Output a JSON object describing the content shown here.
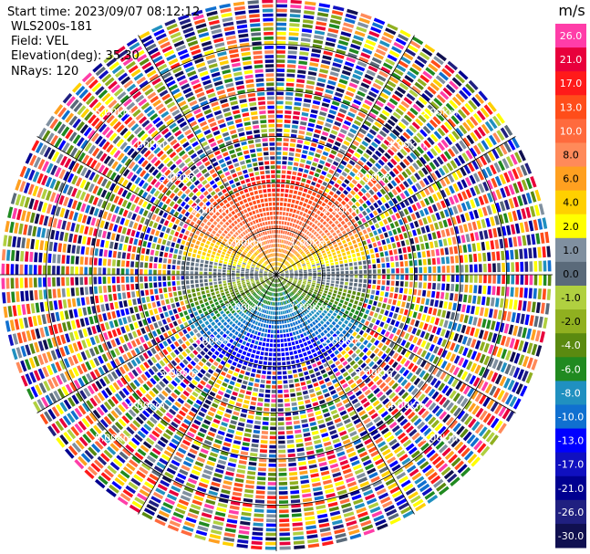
{
  "header": {
    "start_time": "Start time: 2023/09/07 08:12:12",
    "instrument": "WLS200s-181",
    "field": "Field: VEL",
    "elevation": "Elevation(deg): 35.30",
    "nrays": "NRays: 120"
  },
  "chart_data": {
    "type": "heatmap",
    "title": "",
    "projection": "polar-ppi",
    "range_unit": "km",
    "max_range_km": 6.0,
    "range_rings_km": [
      1.0,
      2.0,
      3.0,
      4.0,
      5.0
    ],
    "ring_labels": [
      "1.00km",
      "2.00km",
      "3.00km",
      "4.00km",
      "5.00km"
    ],
    "n_rays": 120,
    "clean_region_max_km": 2.3,
    "velocity_pattern": {
      "north_sector": "positive velocities (2 to 21 m/s, red/orange/yellow)",
      "south_sector": "negative velocities (-4 to -17 m/s, green/blue)",
      "far_range": "noisy, random velocities across full scale"
    },
    "colorbar": {
      "unit": "m/s",
      "tick_labels": [
        "26.0",
        "21.0",
        "17.0",
        "13.0",
        "10.0",
        "8.0",
        "6.0",
        "4.0",
        "2.0",
        "1.0",
        "0.0",
        "-1.0",
        "-2.0",
        "-4.0",
        "-6.0",
        "-8.0",
        "-10.0",
        "-13.0",
        "-17.0",
        "-21.0",
        "-26.0",
        "-30.0"
      ],
      "colors": [
        "#ff3da8",
        "#e8003c",
        "#ff1a1a",
        "#ff4d1a",
        "#ff6a3d",
        "#ff8a5a",
        "#ffa020",
        "#ffd000",
        "#ffff00",
        "#8090a0",
        "#5a6a7a",
        "#b0d040",
        "#90b020",
        "#5a8a10",
        "#208a20",
        "#2090c0",
        "#1070d0",
        "#0000ff",
        "#1010c0",
        "#000090",
        "#202080",
        "#101050"
      ]
    }
  }
}
